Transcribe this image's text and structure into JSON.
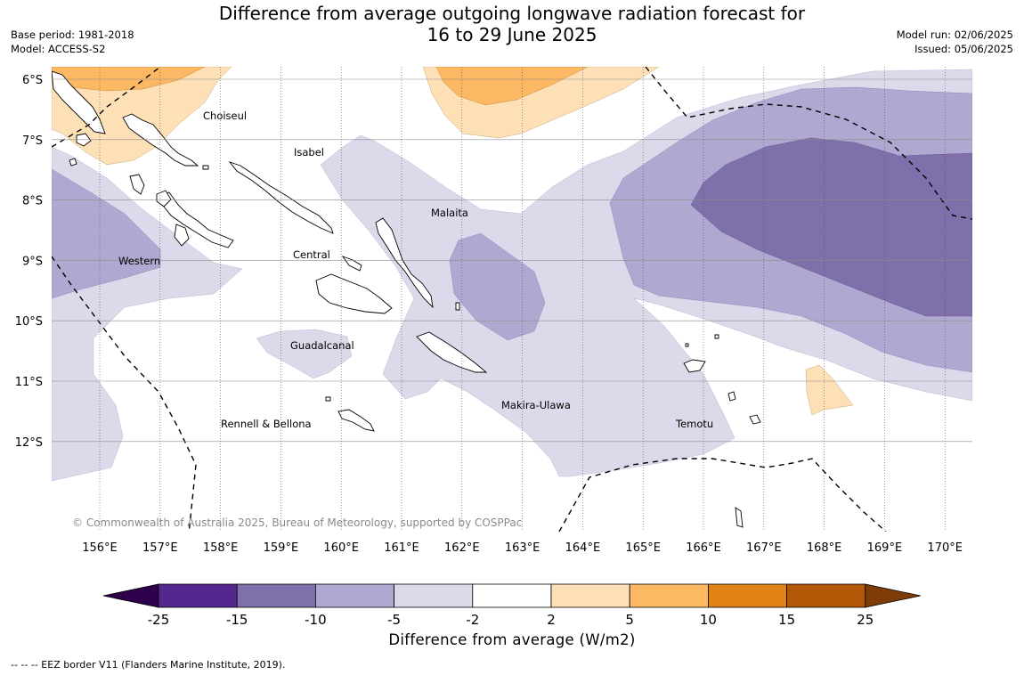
{
  "title_line1": "Difference from average outgoing longwave radiation forecast for",
  "title_line2": "16 to 29 June 2025",
  "base_period": "Base period: 1981-2018",
  "model": "Model: ACCESS-S2",
  "model_run": "Model run: 02/06/2025",
  "issued": "Issued: 05/06/2025",
  "lat_labels": [
    "6°S",
    "7°S",
    "8°S",
    "9°S",
    "10°S",
    "11°S",
    "12°S"
  ],
  "lon_labels": [
    "156°E",
    "157°E",
    "158°E",
    "159°E",
    "160°E",
    "161°E",
    "162°E",
    "163°E",
    "164°E",
    "165°E",
    "166°E",
    "167°E",
    "168°E",
    "169°E",
    "170°E"
  ],
  "regions": {
    "choiseul": "Choiseul",
    "isabel": "Isabel",
    "malaita": "Malaita",
    "western": "Western",
    "central": "Central",
    "guadalcanal": "Guadalcanal",
    "makira": "Makira-Ulawa",
    "temotu": "Temotu",
    "rennell": "Rennell & Bellona"
  },
  "copyright": "© Commonwealth of Australia 2025, Bureau of Meteorology, supported by COSPPac",
  "colorbar": {
    "ticks": [
      "-25",
      "-15",
      "-10",
      "-5",
      "-2",
      "2",
      "5",
      "10",
      "15",
      "25"
    ],
    "colors": [
      "#54278f",
      "#7f6fab",
      "#afa8d0",
      "#dadaeb",
      "#ffffff",
      "#fee0b6",
      "#fdb863",
      "#e08214",
      "#b35806"
    ],
    "under_color": "#2d004b",
    "over_color": "#7f3b08",
    "title": "Difference from average (W/m2)"
  },
  "eez_note": "--  --  -- EEZ border V11 (Flanders Marine Institute, 2019)."
}
